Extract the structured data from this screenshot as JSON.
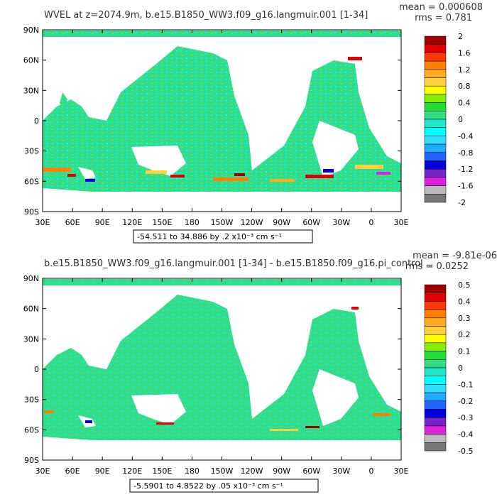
{
  "chart_data": [
    {
      "type": "heatmap",
      "title": "WVEL at z=2074.9m, b.e15.B1850_WW3.f09_g16.langmuir.001 [1-34]",
      "stats": {
        "mean": "mean = 0.000608",
        "rms": "rms = 0.781"
      },
      "x_ticks": [
        "30E",
        "60E",
        "90E",
        "120E",
        "150E",
        "180",
        "150W",
        "120W",
        "90W",
        "60W",
        "30W",
        "0",
        "30E"
      ],
      "y_ticks": [
        "90N",
        "60N",
        "30N",
        "0",
        "30S",
        "60S",
        "90S"
      ],
      "colorbar_labels": [
        "2",
        "1.6",
        "1.2",
        "0.8",
        "0.4",
        "0",
        "-0.4",
        "-0.8",
        "-1.2",
        "-1.6",
        "-2"
      ],
      "range_text": "-54.511 to 34.886 by .2 x10⁻³ cm s⁻¹",
      "units": "x10^-3 cm s^-1"
    },
    {
      "type": "heatmap",
      "title": "b.e15.B1850_WW3.f09_g16.langmuir.001 [1-34] - b.e15.B1850.f09_g16.pi_control",
      "stats": {
        "mean": "mean = -9.81e-06",
        "rms": "rms = 0.0252"
      },
      "x_ticks": [
        "30E",
        "60E",
        "90E",
        "120E",
        "150E",
        "180",
        "150W",
        "120W",
        "90W",
        "60W",
        "30W",
        "0",
        "30E"
      ],
      "y_ticks": [
        "90N",
        "60N",
        "30N",
        "0",
        "30S",
        "60S",
        "90S"
      ],
      "colorbar_labels": [
        "0.5",
        "0.4",
        "0.3",
        "0.2",
        "0.1",
        "0",
        "-0.1",
        "-0.2",
        "-0.3",
        "-0.4",
        "-0.5"
      ],
      "range_text": "-5.5901 to 4.8522 by .05 x10⁻³ cm s⁻¹",
      "units": "x10^-3 cm s^-1"
    }
  ],
  "colors": {
    "colorbar": [
      "#a00000",
      "#e00000",
      "#ff3a00",
      "#ff7f00",
      "#ffaa22",
      "#ffd23a",
      "#ffff00",
      "#88ee00",
      "#22dd33",
      "#33dd88",
      "#22e6cc",
      "#00ffff",
      "#33ddff",
      "#22aaff",
      "#2266ff",
      "#0000dd",
      "#7722cc",
      "#dd22dd",
      "#bbbbbb",
      "#777777"
    ],
    "ocean": "#33dd88",
    "land": "#ffffff"
  }
}
